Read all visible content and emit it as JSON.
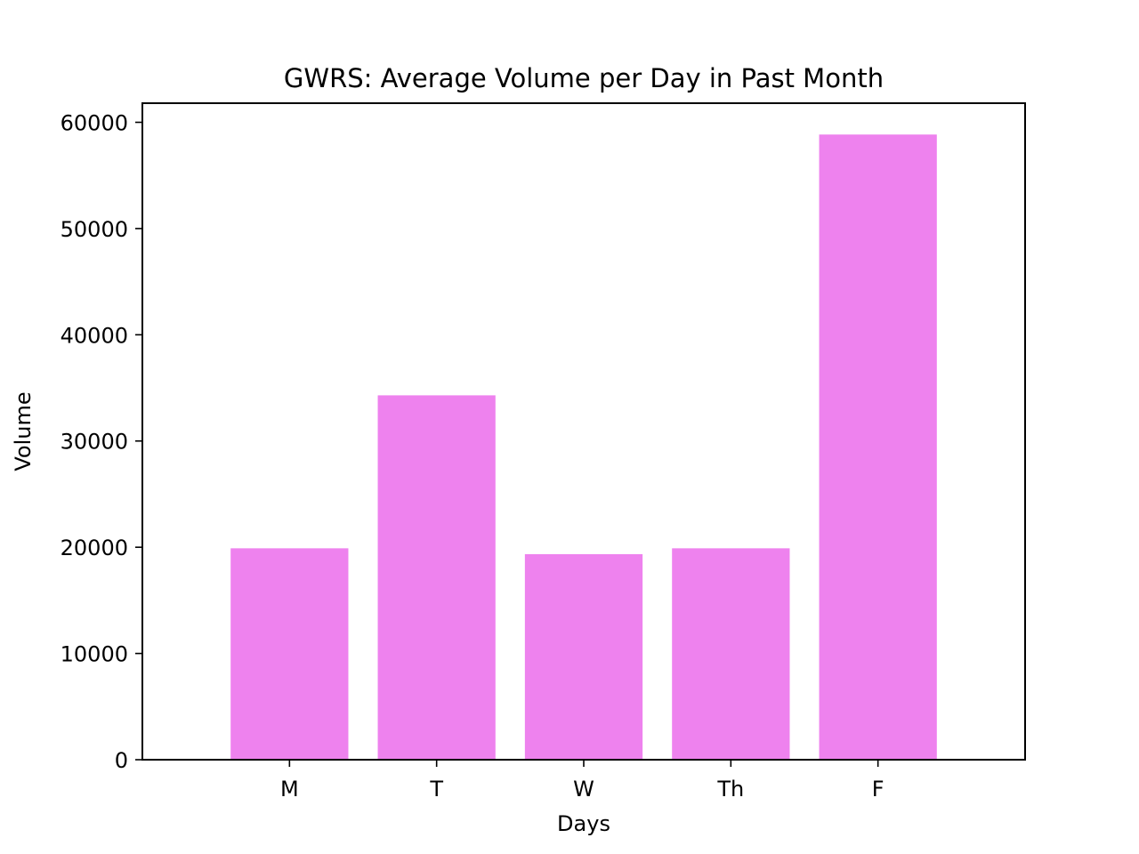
{
  "chart_data": {
    "type": "bar",
    "title": "GWRS: Average Volume per Day in Past Month",
    "xlabel": "Days",
    "ylabel": "Volume",
    "categories": [
      "M",
      "T",
      "W",
      "Th",
      "F"
    ],
    "values": [
      19900,
      34300,
      19350,
      19900,
      58850
    ],
    "ylim": [
      0,
      61800
    ],
    "yticks": [
      0,
      10000,
      20000,
      30000,
      40000,
      50000,
      60000
    ],
    "ytick_labels": [
      "0",
      "10000",
      "20000",
      "30000",
      "40000",
      "50000",
      "60000"
    ],
    "grid": false,
    "legend": "none",
    "bar_color": "#ee82ee"
  }
}
